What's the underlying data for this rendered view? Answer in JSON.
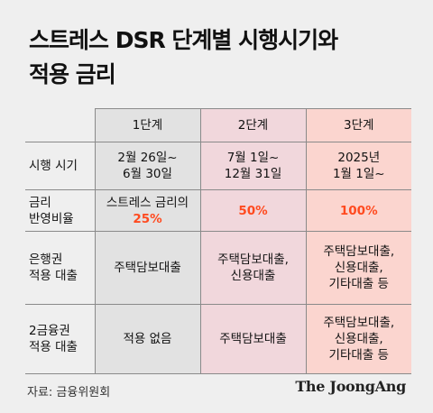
{
  "title": {
    "line1": "스트레스 DSR 단계별 시행시기와",
    "line2": "적용 금리"
  },
  "table": {
    "headers": [
      "1단계",
      "2단계",
      "3단계"
    ],
    "rows": [
      {
        "label": [
          "시행 시기"
        ],
        "cells": [
          [
            "2월 26일~",
            "6월 30일"
          ],
          [
            "7월 1일~",
            "12월 31일"
          ],
          [
            "2025년",
            "1월 1일~"
          ]
        ]
      },
      {
        "label": [
          "금리",
          "반영비율"
        ],
        "cells": [
          {
            "text": "스트레스 금리의",
            "highlight": "25%"
          },
          {
            "highlight": "50%"
          },
          {
            "highlight": "100%"
          }
        ]
      },
      {
        "label": [
          "은행권",
          "적용 대출"
        ],
        "cells": [
          [
            "주택담보대출"
          ],
          [
            "주택담보대출,",
            "신용대출"
          ],
          [
            "주택담보대출,",
            "신용대출,",
            "기타대출 등"
          ]
        ]
      },
      {
        "label": [
          "2금융권",
          "적용 대출"
        ],
        "cells": [
          [
            "적용 없음"
          ],
          [
            "주택담보대출"
          ],
          [
            "주택담보대출,",
            "신용대출,",
            "기타대출 등"
          ]
        ]
      }
    ]
  },
  "footer": {
    "source": "자료: 금융위원회",
    "brand": "The JoongAng"
  },
  "colors": {
    "highlight": "#ff4a1f",
    "stage1_bg": "#e2e2e2",
    "stage2_bg": "#f1d7dc",
    "stage3_bg": "#fbd5cf"
  }
}
